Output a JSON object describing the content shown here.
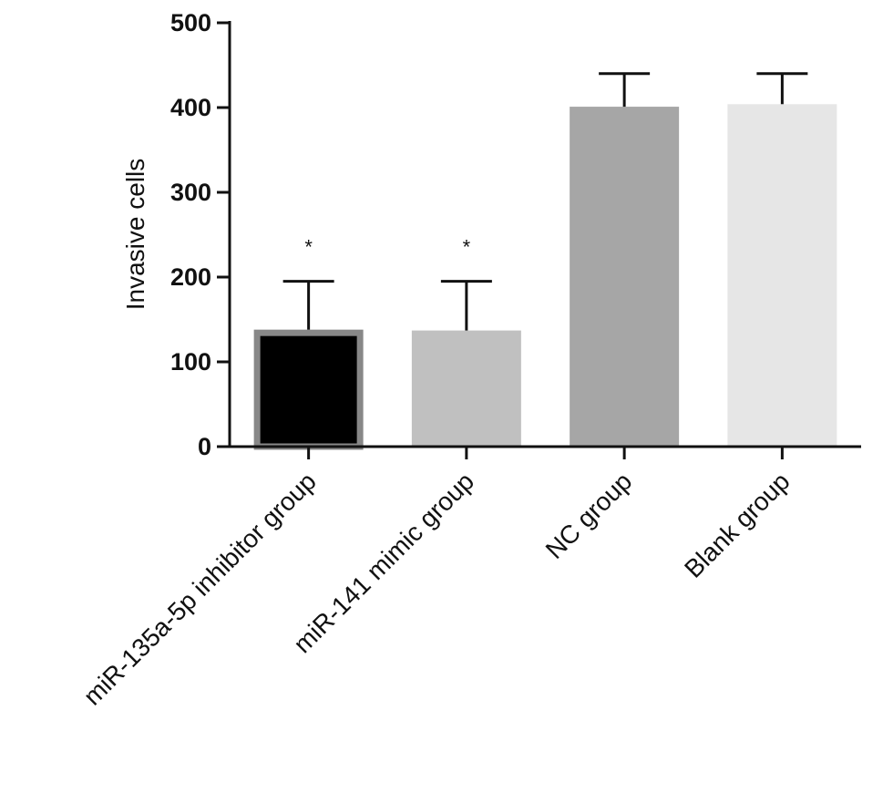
{
  "chart_data": {
    "type": "bar",
    "title": "",
    "xlabel": "",
    "ylabel": "Invasive cells",
    "ylim": [
      0,
      500
    ],
    "yticks": [
      0,
      100,
      200,
      300,
      400,
      500
    ],
    "ytick_labels": [
      "0",
      "100",
      "200",
      "300",
      "400",
      "500"
    ],
    "categories": [
      "miR-135a-5p inhibitor group",
      "miR-141 mimic group",
      "NC group",
      "Blank group"
    ],
    "values": [
      138,
      137,
      401,
      404
    ],
    "error_upper": [
      195,
      195,
      440,
      440
    ],
    "significance": [
      "*",
      "*",
      "",
      ""
    ],
    "bar_colors": [
      "#000000",
      "#c0c0c0",
      "#a6a6a6",
      "#e6e6e6"
    ],
    "bar_edge_colors": [
      "#888888",
      "#c0c0c0",
      "#a6a6a6",
      "#e6e6e6"
    ],
    "grid": false,
    "legend": "none"
  }
}
